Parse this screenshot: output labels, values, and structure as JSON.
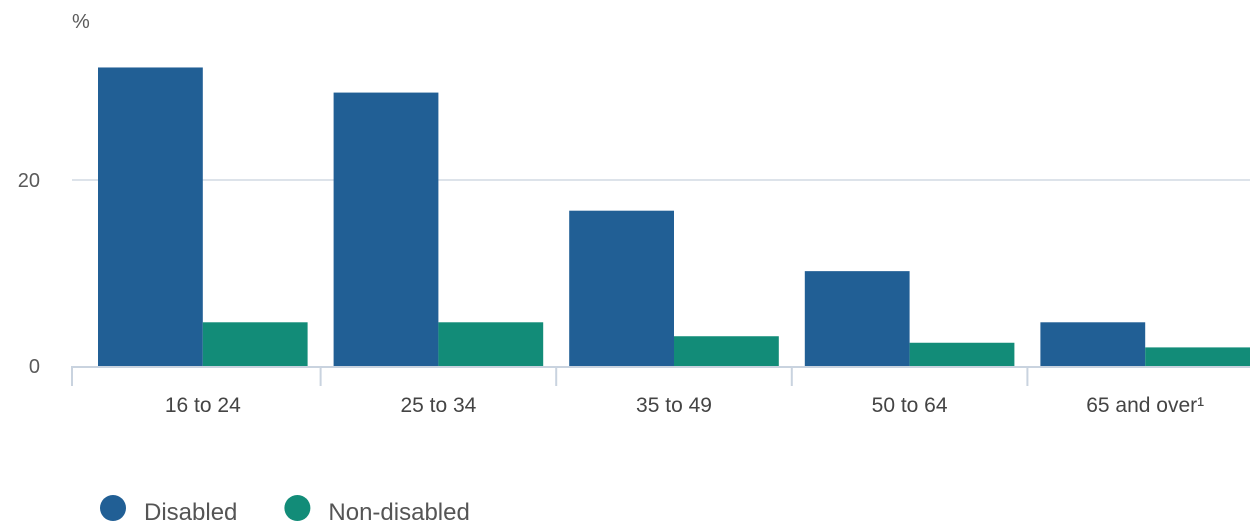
{
  "chart_data": {
    "type": "bar",
    "unit_label": "%",
    "categories": [
      "16 to 24",
      "25 to 34",
      "35 to 49",
      "50 to 64",
      "65 and over¹"
    ],
    "series": [
      {
        "name": "Disabled",
        "color": "#215f95",
        "values": [
          32.1,
          29.4,
          16.7,
          10.2,
          4.7
        ]
      },
      {
        "name": "Non-disabled",
        "color": "#128c78",
        "values": [
          4.7,
          4.7,
          3.2,
          2.5,
          2.0
        ]
      }
    ],
    "yticks": [
      0,
      20
    ],
    "ylim": [
      0,
      36
    ],
    "grid": true,
    "legend_position": "bottom-left"
  }
}
